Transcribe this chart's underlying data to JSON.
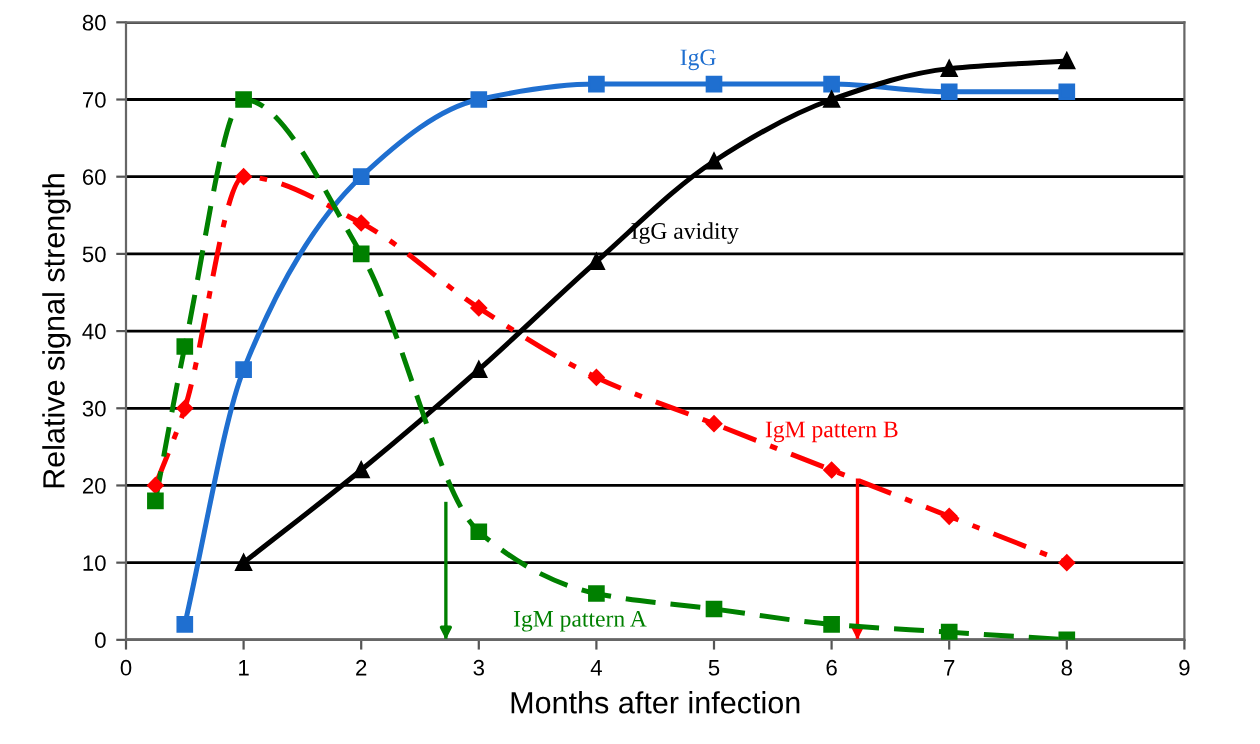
{
  "chart_data": {
    "type": "line",
    "xlabel": "Months after infection",
    "ylabel": "Relative signal strength",
    "xlim": [
      0,
      9
    ],
    "xticks": [
      0,
      1,
      2,
      3,
      4,
      5,
      6,
      7,
      8,
      9
    ],
    "ylim": [
      0,
      80
    ],
    "yticks": [
      0,
      10,
      20,
      30,
      40,
      50,
      60,
      70,
      80
    ],
    "grid": "y",
    "legend": false,
    "series": [
      {
        "name": "IgG",
        "color": "#1f6fd0",
        "marker": "square",
        "line_style": "solid",
        "x": [
          0.5,
          1,
          2,
          3,
          4,
          5,
          6,
          7,
          8
        ],
        "values": [
          2,
          35,
          60,
          70,
          72,
          72,
          72,
          71,
          71
        ]
      },
      {
        "name": "IgG avidity",
        "color": "#000000",
        "marker": "triangle",
        "line_style": "solid",
        "x": [
          1,
          2,
          3,
          4,
          5,
          6,
          7,
          8
        ],
        "values": [
          10,
          22,
          35,
          49,
          62,
          70,
          74,
          75
        ]
      },
      {
        "name": "IgM pattern B",
        "color": "#ff0000",
        "marker": "diamond",
        "line_style": "dashdot",
        "x": [
          0.25,
          0.5,
          1,
          2,
          3,
          4,
          5,
          6,
          7,
          8
        ],
        "values": [
          20,
          30,
          60,
          54,
          43,
          34,
          28,
          22,
          16,
          10
        ]
      },
      {
        "name": "IgM pattern A",
        "color": "#008000",
        "marker": "square",
        "line_style": "dashed",
        "x": [
          0.25,
          0.5,
          1,
          2,
          3,
          4,
          5,
          6,
          7,
          8
        ],
        "values": [
          18,
          38,
          70,
          50,
          14,
          6,
          4,
          2,
          1,
          0
        ]
      }
    ],
    "ref_lines": [
      {
        "axis": "x",
        "value": 2.72,
        "color": "#008000"
      },
      {
        "axis": "x",
        "value": 6.22,
        "color": "#ff0000"
      }
    ]
  }
}
